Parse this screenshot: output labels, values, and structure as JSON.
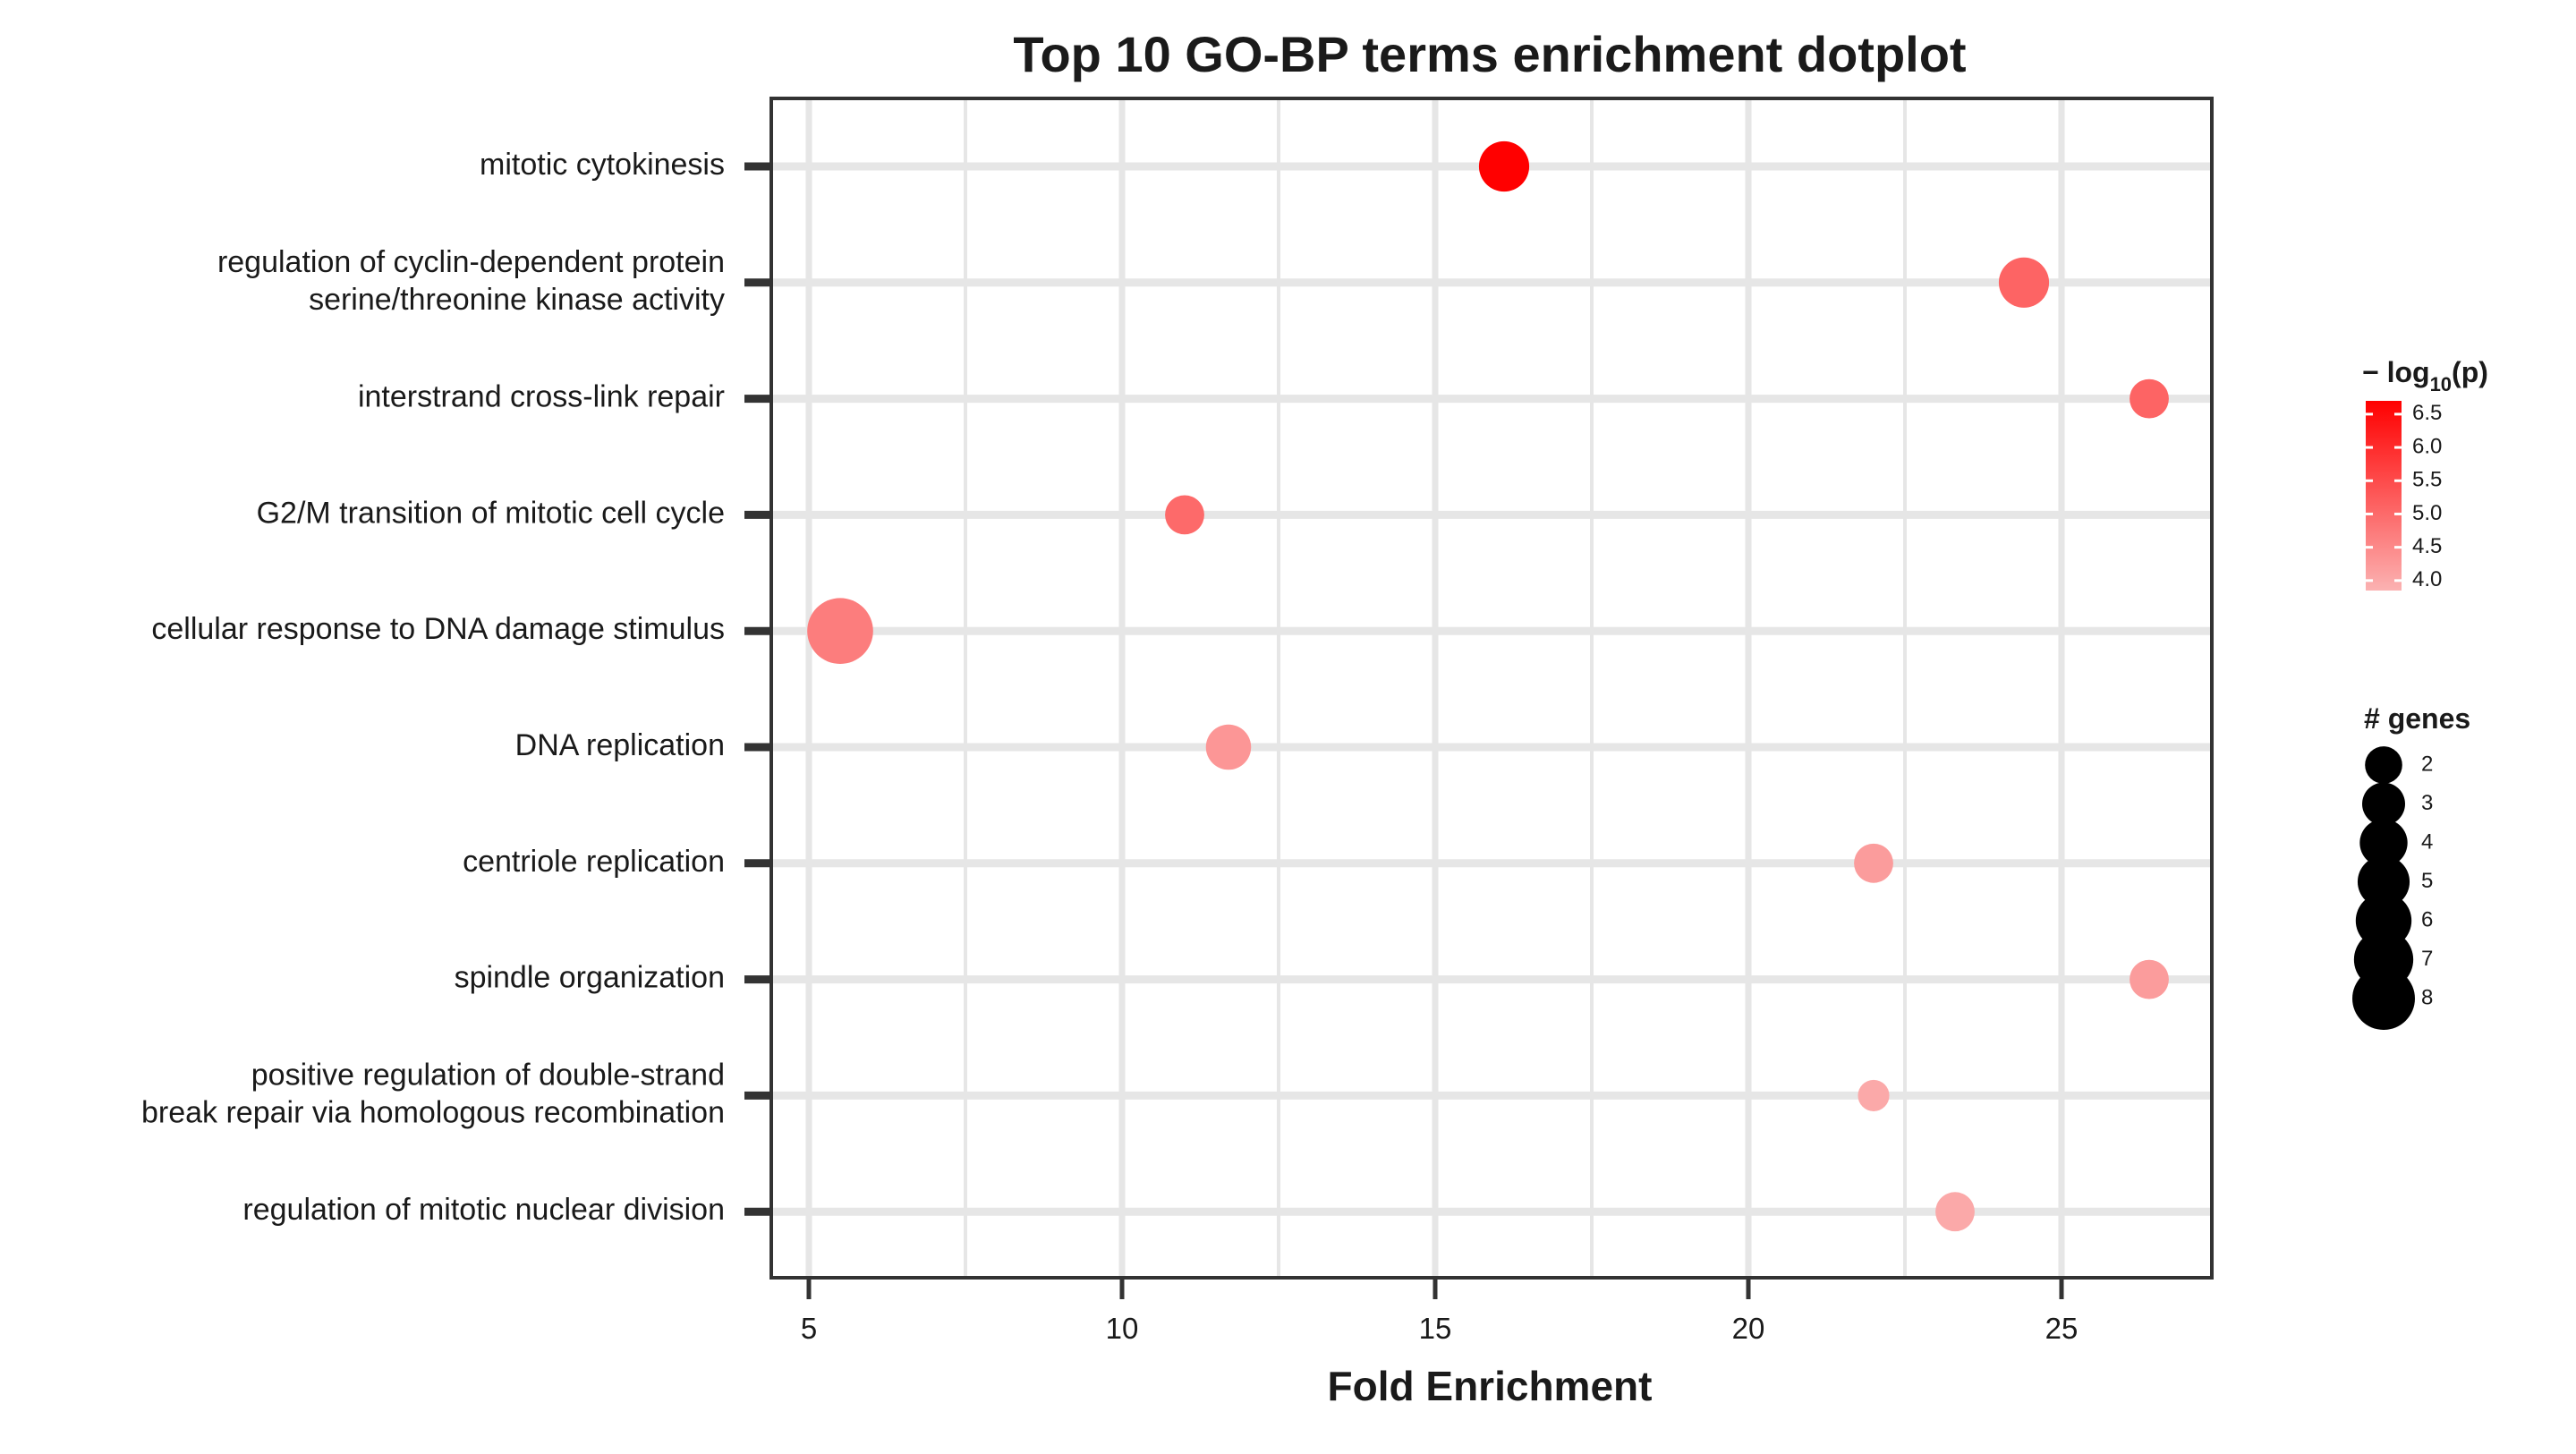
{
  "chart_data": {
    "type": "scatter",
    "title": "Top 10 GO-BP terms enrichment dotplot",
    "xlabel": "Fold Enrichment",
    "ylabel": "",
    "xlim": [
      4.4,
      27.4
    ],
    "xticks": [
      5,
      10,
      15,
      20,
      25
    ],
    "xtick_labels": [
      "5",
      "10",
      "15",
      "20",
      "25"
    ],
    "grid": true,
    "terms": [
      {
        "label_lines": [
          "mitotic cytokinesis"
        ],
        "fold_enrichment": 16.1,
        "neg_log10_p": 6.7,
        "genes": 4
      },
      {
        "label_lines": [
          "regulation of cyclin-dependent protein",
          "serine/threonine kinase activity"
        ],
        "fold_enrichment": 24.4,
        "neg_log10_p": 5.1,
        "genes": 4
      },
      {
        "label_lines": [
          "interstrand cross-link repair"
        ],
        "fold_enrichment": 26.4,
        "neg_log10_p": 5.1,
        "genes": 2
      },
      {
        "label_lines": [
          "G2/M transition of mitotic cell cycle"
        ],
        "fold_enrichment": 11.0,
        "neg_log10_p": 5.0,
        "genes": 2
      },
      {
        "label_lines": [
          "cellular response to DNA damage stimulus"
        ],
        "fold_enrichment": 5.5,
        "neg_log10_p": 4.7,
        "genes": 8
      },
      {
        "label_lines": [
          "DNA replication"
        ],
        "fold_enrichment": 11.7,
        "neg_log10_p": 4.3,
        "genes": 3
      },
      {
        "label_lines": [
          "centriole replication"
        ],
        "fold_enrichment": 22.0,
        "neg_log10_p": 4.2,
        "genes": 2
      },
      {
        "label_lines": [
          "spindle organization"
        ],
        "fold_enrichment": 26.4,
        "neg_log10_p": 4.2,
        "genes": 2
      },
      {
        "label_lines": [
          "positive regulation of double-strand",
          "break repair via homologous recombination"
        ],
        "fold_enrichment": 22.0,
        "neg_log10_p": 4.0,
        "genes": 1
      },
      {
        "label_lines": [
          "regulation of mitotic nuclear division"
        ],
        "fold_enrichment": 23.3,
        "neg_log10_p": 4.0,
        "genes": 2
      }
    ],
    "color_legend": {
      "title_prefix": "− log",
      "title_sub": "10",
      "title_suffix": "(p)",
      "range": [
        3.85,
        6.7
      ],
      "ticks": [
        6.5,
        6.0,
        5.5,
        5.0,
        4.5,
        4.0
      ],
      "tick_labels": [
        "6.5",
        "6.0",
        "5.5",
        "5.0",
        "4.5",
        "4.0"
      ],
      "color_low": "#fbb2b2",
      "color_high": "#ff0000"
    },
    "size_legend": {
      "title": "# genes",
      "values": [
        2,
        3,
        4,
        5,
        6,
        7,
        8
      ],
      "labels": [
        "2",
        "3",
        "4",
        "5",
        "6",
        "7",
        "8"
      ]
    },
    "colors": {
      "panel_border": "#333333",
      "grid": "#e6e6e6",
      "tick": "#333333"
    }
  }
}
